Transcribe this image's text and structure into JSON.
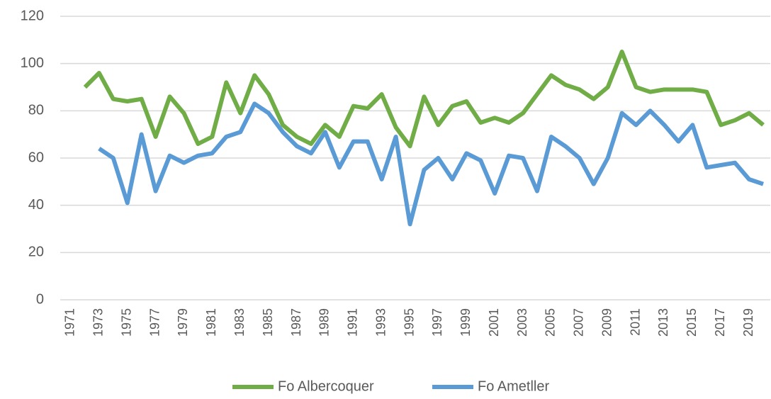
{
  "chart_data": {
    "type": "line",
    "x": [
      1972,
      1973,
      1974,
      1975,
      1976,
      1977,
      1978,
      1979,
      1980,
      1981,
      1982,
      1983,
      1984,
      1985,
      1986,
      1987,
      1988,
      1989,
      1990,
      1991,
      1992,
      1993,
      1994,
      1995,
      1996,
      1997,
      1998,
      1999,
      2000,
      2001,
      2002,
      2003,
      2004,
      2005,
      2006,
      2007,
      2008,
      2009,
      2010,
      2011,
      2012,
      2013,
      2014,
      2015,
      2016,
      2017,
      2018,
      2019,
      2020
    ],
    "series": [
      {
        "name": "Fo Albercoquer",
        "color": "#70ad47",
        "values": [
          90,
          96,
          85,
          84,
          85,
          69,
          86,
          79,
          66,
          69,
          92,
          79,
          95,
          87,
          74,
          69,
          66,
          74,
          69,
          82,
          81,
          87,
          73,
          65,
          86,
          74,
          82,
          84,
          75,
          77,
          75,
          79,
          87,
          95,
          91,
          89,
          85,
          90,
          105,
          90,
          88,
          89,
          89,
          89,
          88,
          74,
          76,
          79,
          74
        ]
      },
      {
        "name": "Fo Ametller",
        "color": "#5b9bd5",
        "values": [
          null,
          64,
          60,
          41,
          70,
          46,
          61,
          58,
          61,
          62,
          69,
          71,
          83,
          79,
          71,
          65,
          62,
          71,
          56,
          67,
          67,
          51,
          69,
          32,
          55,
          60,
          51,
          62,
          59,
          45,
          61,
          60,
          46,
          69,
          65,
          60,
          49,
          60,
          79,
          74,
          80,
          74,
          67,
          74,
          56,
          57,
          58,
          51,
          49
        ]
      }
    ],
    "xlim": [
      1970.5,
      2020.5
    ],
    "xticks": [
      1971,
      1973,
      1975,
      1977,
      1979,
      1981,
      1983,
      1985,
      1987,
      1989,
      1991,
      1993,
      1995,
      1997,
      1999,
      2001,
      2003,
      2005,
      2007,
      2009,
      2011,
      2013,
      2015,
      2017,
      2019
    ],
    "ylim": [
      0,
      120
    ],
    "yticks": [
      0,
      20,
      40,
      60,
      80,
      100,
      120
    ],
    "grid": true,
    "legend": "bottom"
  }
}
